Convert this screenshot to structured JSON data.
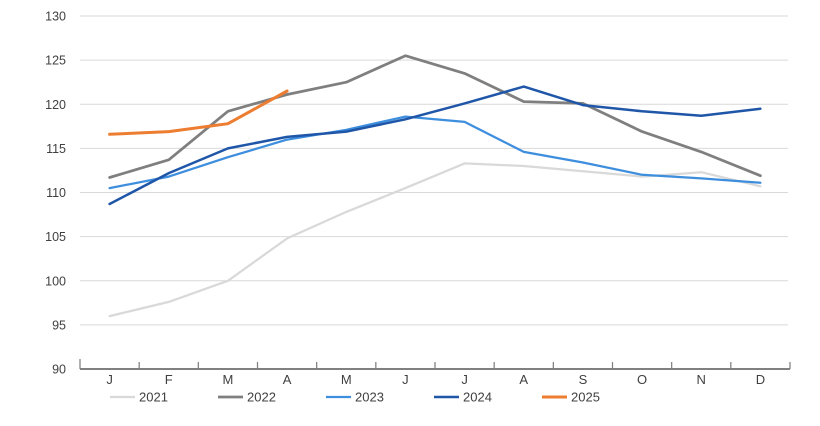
{
  "chart_data": {
    "type": "line",
    "title": "",
    "categories": [
      "J",
      "F",
      "M",
      "A",
      "M",
      "J",
      "J",
      "A",
      "S",
      "O",
      "N",
      "D"
    ],
    "y_ticks": [
      90,
      95,
      100,
      105,
      110,
      115,
      120,
      125,
      130
    ],
    "ylim": [
      90,
      130
    ],
    "grid": true,
    "legend_position": "bottom",
    "series": [
      {
        "name": "2021",
        "color": "#d9d9d9",
        "stroke_width": 2.25,
        "values": [
          96.0,
          97.6,
          100.0,
          104.8,
          107.8,
          110.5,
          113.3,
          113.0,
          112.4,
          111.8,
          112.3,
          110.7
        ]
      },
      {
        "name": "2022",
        "color": "#7f7f7f",
        "stroke_width": 2.75,
        "values": [
          111.7,
          113.7,
          119.2,
          121.1,
          122.5,
          125.5,
          123.5,
          120.3,
          120.1,
          116.9,
          114.6,
          111.9
        ]
      },
      {
        "name": "2023",
        "color": "#3e8ede",
        "stroke_width": 2.25,
        "values": [
          110.5,
          111.8,
          114.0,
          116.0,
          117.1,
          118.6,
          118.0,
          114.6,
          113.4,
          112.0,
          111.6,
          111.1
        ]
      },
      {
        "name": "2024",
        "color": "#1f56a8",
        "stroke_width": 2.5,
        "values": [
          108.7,
          112.2,
          115.0,
          116.3,
          116.9,
          118.3,
          120.1,
          122.0,
          119.9,
          119.2,
          118.7,
          119.5
        ]
      },
      {
        "name": "2025",
        "color": "#ed7d31",
        "stroke_width": 3,
        "values": [
          116.6,
          116.9,
          117.8,
          121.5,
          null,
          null,
          null,
          null,
          null,
          null,
          null,
          null
        ]
      }
    ]
  },
  "legend": {
    "items": [
      {
        "label": "2021",
        "color": "#d9d9d9"
      },
      {
        "label": "2022",
        "color": "#7f7f7f"
      },
      {
        "label": "2023",
        "color": "#3e8ede"
      },
      {
        "label": "2024",
        "color": "#1f56a8"
      },
      {
        "label": "2025",
        "color": "#ed7d31"
      }
    ]
  },
  "colors": {
    "gridline": "#d9d9d9",
    "axis_line": "#808080",
    "tick_label": "#404040",
    "legend_label": "#404040",
    "background": "#ffffff"
  }
}
